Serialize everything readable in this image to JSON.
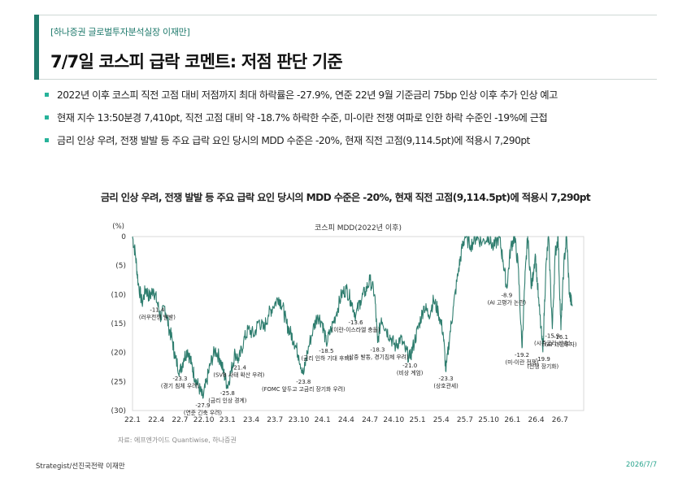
{
  "header": {
    "tag": "[하나증권 글로벌투자분석실장 이재만]",
    "title": "7/7일 코스피 급락 코멘트: 저점 판단 기준"
  },
  "bullets": [
    "2022년 이후 코스피 직전 고점 대비 저점까지 최대 하락률은 -27.9%, 연준 22년 9월 기준금리 75bp 인상 이후 추가 인상 예고",
    "현재 지수 13:50분경 7,410pt, 직전 고점 대비 약 -18.7% 하락한 수준, 미-이란 전쟁 여파로 인한 하락 수준인 -19%에 근접",
    "금리 인상 우려, 전쟁 발발 등 주요 급락 요인 당시의 MDD 수준은 -20%, 현재 직전 고점(9,114.5pt)에 적용시 7,290pt"
  ],
  "chart_heading": "금리 인상 우려, 전쟁 발발 등 주요 급락 요인 당시의 MDD 수준은 -20%, 현재 직전 고점(9,114.5pt)에 적용시 7,290pt",
  "source": "자료: 에프엔가이드 Quantiwise, 하나증권",
  "footer": {
    "left": "Strategist/선진국전략 이재만",
    "right": "2026/7/7"
  },
  "colors": {
    "accent": "#1f7a6c",
    "line": "#2e7d6e",
    "bullet": "#27b39a"
  },
  "chart_data": {
    "type": "line",
    "title": "코스피 MDD(2022년 이후)",
    "ylabel": "(%)",
    "ylim": [
      -30,
      0
    ],
    "y_ticks": [
      0,
      -5,
      -10,
      -15,
      -20,
      -25,
      -30
    ],
    "y_tick_labels": [
      "0",
      "(5)",
      "(10)",
      "(15)",
      "(20)",
      "(25)",
      "(30)"
    ],
    "x_range": [
      2022.0,
      2026.75
    ],
    "x_ticks": [
      2022.0,
      2022.25,
      2022.5,
      2022.75,
      2023.0,
      2023.25,
      2023.5,
      2023.75,
      2024.0,
      2024.25,
      2024.5,
      2024.75,
      2025.0,
      2025.25,
      2025.5,
      2025.75,
      2026.0,
      2026.25,
      2026.5
    ],
    "x_tick_labels": [
      "22.1",
      "22.4",
      "22.7",
      "22.10",
      "23.1",
      "23.4",
      "23.7",
      "23.10",
      "24.1",
      "24.4",
      "24.7",
      "24.10",
      "25.1",
      "25.4",
      "25.7",
      "25.10",
      "26.1",
      "26.4",
      "26.7"
    ],
    "series": [
      {
        "values": [
          [
            2022.0,
            0
          ],
          [
            2022.03,
            -3
          ],
          [
            2022.06,
            -8
          ],
          [
            2022.1,
            -11.5
          ],
          [
            2022.14,
            -9
          ],
          [
            2022.18,
            -10.5
          ],
          [
            2022.22,
            -9
          ],
          [
            2022.26,
            -11.4
          ],
          [
            2022.3,
            -14
          ],
          [
            2022.34,
            -12
          ],
          [
            2022.38,
            -15.5
          ],
          [
            2022.42,
            -18
          ],
          [
            2022.45,
            -21
          ],
          [
            2022.5,
            -23.3
          ],
          [
            2022.54,
            -21
          ],
          [
            2022.58,
            -19.5
          ],
          [
            2022.62,
            -22
          ],
          [
            2022.66,
            -24.5
          ],
          [
            2022.7,
            -26
          ],
          [
            2022.74,
            -27.9
          ],
          [
            2022.78,
            -25
          ],
          [
            2022.82,
            -22
          ],
          [
            2022.87,
            -19.5
          ],
          [
            2022.92,
            -21
          ],
          [
            2022.96,
            -23.5
          ],
          [
            2023.0,
            -25.8
          ],
          [
            2023.04,
            -23
          ],
          [
            2023.08,
            -20
          ],
          [
            2023.12,
            -21.4
          ],
          [
            2023.17,
            -18
          ],
          [
            2023.22,
            -16
          ],
          [
            2023.28,
            -17
          ],
          [
            2023.33,
            -14.5
          ],
          [
            2023.38,
            -16
          ],
          [
            2023.43,
            -13.5
          ],
          [
            2023.48,
            -12
          ],
          [
            2023.54,
            -10.5
          ],
          [
            2023.58,
            -12
          ],
          [
            2023.62,
            -15
          ],
          [
            2023.66,
            -16.5
          ],
          [
            2023.7,
            -18
          ],
          [
            2023.75,
            -20.5
          ],
          [
            2023.8,
            -23.8
          ],
          [
            2023.84,
            -20
          ],
          [
            2023.9,
            -16
          ],
          [
            2023.95,
            -13.5
          ],
          [
            2024.0,
            -15
          ],
          [
            2024.04,
            -18.5
          ],
          [
            2024.09,
            -16
          ],
          [
            2024.15,
            -13
          ],
          [
            2024.2,
            -10
          ],
          [
            2024.25,
            -9
          ],
          [
            2024.3,
            -11
          ],
          [
            2024.35,
            -13.6
          ],
          [
            2024.4,
            -11
          ],
          [
            2024.45,
            -9.5
          ],
          [
            2024.5,
            -7.5
          ],
          [
            2024.55,
            -10
          ],
          [
            2024.58,
            -18.3
          ],
          [
            2024.62,
            -14
          ],
          [
            2024.67,
            -16
          ],
          [
            2024.72,
            -17.5
          ],
          [
            2024.77,
            -19
          ],
          [
            2024.82,
            -17.5
          ],
          [
            2024.87,
            -19.5
          ],
          [
            2024.92,
            -21.0
          ],
          [
            2024.97,
            -18
          ],
          [
            2025.02,
            -15
          ],
          [
            2025.07,
            -12
          ],
          [
            2025.12,
            -13.5
          ],
          [
            2025.17,
            -11
          ],
          [
            2025.22,
            -13
          ],
          [
            2025.27,
            -16.5
          ],
          [
            2025.3,
            -23.3
          ],
          [
            2025.34,
            -17
          ],
          [
            2025.38,
            -12
          ],
          [
            2025.43,
            -6
          ],
          [
            2025.47,
            -2
          ],
          [
            2025.5,
            0
          ],
          [
            2025.56,
            -1.5
          ],
          [
            2025.62,
            0
          ],
          [
            2025.68,
            -1
          ],
          [
            2025.75,
            0
          ],
          [
            2025.8,
            -2
          ],
          [
            2025.86,
            0
          ],
          [
            2025.9,
            -4
          ],
          [
            2025.94,
            -8.9
          ],
          [
            2025.98,
            -2
          ],
          [
            2026.02,
            0
          ],
          [
            2026.06,
            -5
          ],
          [
            2026.1,
            -19.2
          ],
          [
            2026.13,
            -8
          ],
          [
            2026.16,
            0
          ],
          [
            2026.2,
            -9
          ],
          [
            2026.24,
            -3
          ],
          [
            2026.28,
            -12
          ],
          [
            2026.32,
            -19.9
          ],
          [
            2026.35,
            -6
          ],
          [
            2026.38,
            0
          ],
          [
            2026.42,
            -15.9
          ],
          [
            2026.45,
            -3
          ],
          [
            2026.48,
            0
          ],
          [
            2026.51,
            -16.1
          ],
          [
            2026.54,
            -5
          ],
          [
            2026.57,
            0
          ],
          [
            2026.6,
            -10
          ],
          [
            2026.63,
            -12
          ]
        ]
      }
    ],
    "annotations": [
      {
        "x": 2022.26,
        "y": -11.4,
        "value": "-11.4",
        "label": "(러우전쟁 발발)"
      },
      {
        "x": 2022.5,
        "y": -23.3,
        "value": "-23.3",
        "label": "(경기 침체 우려)"
      },
      {
        "x": 2022.74,
        "y": -27.9,
        "value": "-27.9",
        "label": "(연준 긴축 우려)"
      },
      {
        "x": 2023.0,
        "y": -25.8,
        "value": "-25.8",
        "label": "(금리 인상 경계)"
      },
      {
        "x": 2023.12,
        "y": -21.4,
        "value": "-21.4",
        "label": "(SVB 사태 확산 우려)"
      },
      {
        "x": 2023.8,
        "y": -23.8,
        "value": "-23.8",
        "label": "(FOMC 앞두고 고금리 장기화 우려)"
      },
      {
        "x": 2024.04,
        "y": -18.5,
        "value": "-18.5",
        "label": "(금리 인하 기대 후퇴)"
      },
      {
        "x": 2024.35,
        "y": -13.6,
        "value": "-13.6",
        "label": "(이란-이스라엘 충돌)"
      },
      {
        "x": 2024.58,
        "y": -18.3,
        "value": "-18.3",
        "label": "(삼중 발동, 경기침체 우려)"
      },
      {
        "x": 2024.92,
        "y": -21.0,
        "value": "-21.0",
        "label": "(비상 계엄)"
      },
      {
        "x": 2025.3,
        "y": -23.3,
        "value": "-23.3",
        "label": "(상호관세)"
      },
      {
        "x": 2025.94,
        "y": -8.9,
        "value": "-8.9",
        "label": "(AI 고평가 논란)"
      },
      {
        "x": 2026.1,
        "y": -19.2,
        "value": "-19.2",
        "label": "(미-이란 전쟁)"
      },
      {
        "x": 2026.32,
        "y": -19.9,
        "value": "-19.9",
        "label": "(전쟁 장기화)"
      },
      {
        "x": 2026.42,
        "y": -15.9,
        "value": "-15.9",
        "label": "(시중금리 상승)"
      },
      {
        "x": 2026.51,
        "y": -16.1,
        "value": "-16.1",
        "label": "(AI 과잉투자)"
      }
    ]
  }
}
